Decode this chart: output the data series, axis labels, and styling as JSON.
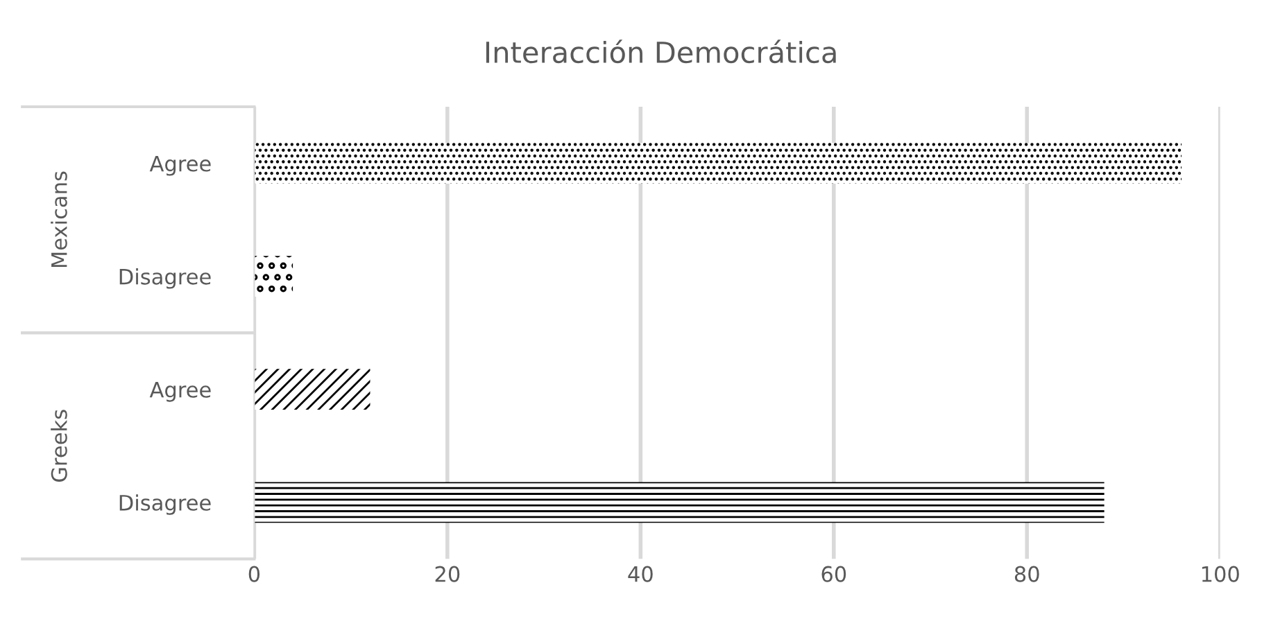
{
  "chart_data": {
    "type": "bar",
    "orientation": "horizontal",
    "title": "Interacción Democrática",
    "categories": [
      "Agree",
      "Disagree",
      "Agree",
      "Disagree"
    ],
    "values": [
      96,
      4,
      12,
      88
    ],
    "colors": [
      "#000000",
      "#000000",
      "#000000",
      "#000000"
    ],
    "annotations": [
      "Mexicans",
      "Greeks"
    ],
    "xlim": [
      0,
      100
    ],
    "xticks": [
      0,
      20,
      40,
      60,
      80,
      100
    ],
    "grid": "x"
  }
}
